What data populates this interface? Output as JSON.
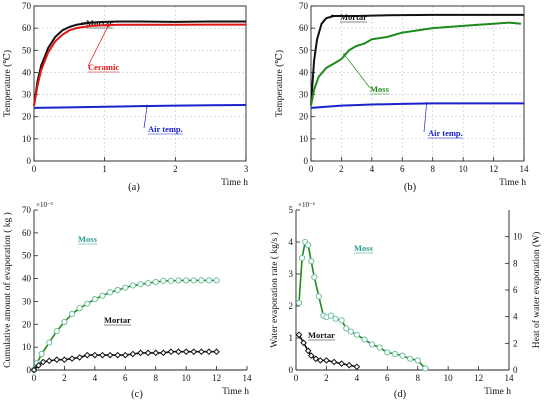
{
  "chart_data": [
    {
      "type": "line",
      "panel_caption": "(a)",
      "xlabel": "Time  h",
      "ylabel": "Temperature  (℃)",
      "xlim": [
        0,
        3
      ],
      "ylim": [
        0,
        70
      ],
      "xticks": [
        0,
        1,
        2,
        3
      ],
      "yticks": [
        0,
        10,
        20,
        30,
        40,
        50,
        60,
        70
      ],
      "grid": true,
      "series": [
        {
          "name": "Mortar",
          "color": "#111111",
          "x": [
            0,
            0.05,
            0.1,
            0.2,
            0.3,
            0.4,
            0.5,
            0.6,
            0.7,
            0.8,
            1.0,
            1.2,
            1.5,
            2.0,
            2.5,
            3.0
          ],
          "y": [
            25,
            36,
            43,
            51,
            56,
            59,
            60.5,
            61.5,
            62,
            62.5,
            62.8,
            63,
            63,
            62.8,
            63,
            63
          ]
        },
        {
          "name": "Ceramic",
          "color": "#e01515",
          "x": [
            0,
            0.05,
            0.1,
            0.2,
            0.3,
            0.4,
            0.5,
            0.6,
            0.7,
            0.8,
            1.0,
            1.2,
            1.5,
            2.0,
            2.5,
            3.0
          ],
          "y": [
            25,
            34,
            41,
            49,
            54,
            57,
            59,
            60,
            60.5,
            61,
            61.3,
            61.5,
            61.5,
            61.5,
            61.6,
            61.6
          ]
        },
        {
          "name": "Air temp.",
          "color": "#1a22cc",
          "x": [
            0,
            0.5,
            1,
            1.5,
            2,
            2.5,
            3
          ],
          "y": [
            24,
            24.2,
            24.5,
            24.8,
            25,
            25.2,
            25.3
          ]
        }
      ]
    },
    {
      "type": "line",
      "panel_caption": "(b)",
      "xlabel": "Time  h",
      "ylabel": "Temperature  (℃)",
      "xlim": [
        0,
        14
      ],
      "ylim": [
        0,
        70
      ],
      "xticks": [
        0,
        2,
        4,
        6,
        8,
        10,
        12,
        14
      ],
      "yticks": [
        0,
        10,
        20,
        30,
        40,
        50,
        60,
        70
      ],
      "grid": true,
      "series": [
        {
          "name": "Mortar",
          "color": "#111111",
          "x": [
            0,
            0.2,
            0.4,
            0.7,
            1,
            1.5,
            2,
            3,
            5,
            8,
            10,
            12,
            14
          ],
          "y": [
            25,
            45,
            55,
            62,
            64.5,
            65.5,
            65.5,
            65.5,
            65.8,
            66,
            66,
            66,
            66
          ]
        },
        {
          "name": "Moss",
          "color": "#1e8a1e",
          "x": [
            0,
            0.2,
            0.5,
            1,
            1.5,
            2,
            2.5,
            3,
            3.5,
            4,
            5,
            6,
            7,
            8,
            9,
            10,
            11,
            12,
            13,
            13.8
          ],
          "y": [
            25,
            32,
            38,
            42,
            44,
            46,
            50,
            52,
            53,
            55,
            56,
            58,
            59,
            60,
            60.5,
            61,
            61.5,
            62,
            62.5,
            62
          ]
        },
        {
          "name": "Air temp.",
          "color": "#1a22cc",
          "x": [
            0,
            2,
            4,
            6,
            8,
            10,
            12,
            14
          ],
          "y": [
            24,
            25,
            25.5,
            25.8,
            26,
            26,
            26,
            26
          ]
        }
      ]
    },
    {
      "type": "line",
      "panel_caption": "(c)",
      "xlabel": "Time  h",
      "ylabel": "Cumulative amount of evaporation ( kg )",
      "multiplier": "×10⁻³",
      "xlim": [
        0,
        14
      ],
      "ylim": [
        0,
        70
      ],
      "xticks": [
        0,
        2,
        4,
        6,
        8,
        10,
        12,
        14
      ],
      "yticks": [
        0,
        10,
        20,
        30,
        40,
        50,
        60,
        70
      ],
      "grid": false,
      "series": [
        {
          "name": "Moss",
          "color": "#1e8a1e",
          "marker": "circle",
          "x": [
            0,
            0.2,
            0.5,
            1,
            1.5,
            2,
            2.5,
            3,
            3.5,
            4,
            4.5,
            5,
            5.5,
            6,
            6.5,
            7,
            7.5,
            8,
            8.5,
            9,
            9.5,
            10,
            10.5,
            11,
            11.5,
            12
          ],
          "y": [
            0,
            3,
            7,
            12,
            17,
            21,
            24.5,
            27,
            29,
            31,
            32.5,
            34,
            35,
            36,
            37,
            37.5,
            38,
            38.5,
            39,
            39,
            39.2,
            39.2,
            39.2,
            39.2,
            39.2,
            39.2
          ]
        },
        {
          "name": "Mortar",
          "color": "#111111",
          "marker": "diamond",
          "x": [
            0,
            0.3,
            0.6,
            1,
            1.5,
            2,
            2.5,
            3,
            3.5,
            4,
            4.5,
            5,
            5.5,
            6,
            6.5,
            7,
            7.5,
            8,
            8.5,
            9,
            9.5,
            10,
            10.5,
            11,
            11.5,
            12
          ],
          "y": [
            0,
            2,
            3.5,
            4,
            4.5,
            4.5,
            5,
            5.5,
            6.5,
            6.5,
            6.5,
            6.5,
            6.5,
            6.5,
            7,
            7.5,
            7.5,
            7.5,
            7.5,
            8,
            8,
            8,
            8,
            8,
            8,
            8
          ]
        }
      ]
    },
    {
      "type": "line",
      "panel_caption": "(d)",
      "xlabel": "Time  h",
      "ylabel": "Water evaporation rate ( kg/s )",
      "ylabel_right": "Heat of water evaporation  (W)",
      "multiplier": "×10⁻⁶",
      "xlim": [
        0,
        14
      ],
      "ylim": [
        0,
        5
      ],
      "ylim_right": [
        0,
        12
      ],
      "xticks": [
        0,
        2,
        4,
        6,
        8,
        10,
        12,
        14
      ],
      "yticks": [
        0,
        1,
        2,
        3,
        4,
        5
      ],
      "yticks_right": [
        0,
        2,
        4,
        6,
        8,
        10
      ],
      "grid": false,
      "series": [
        {
          "name": "Moss",
          "color": "#1e8a1e",
          "marker": "circle",
          "x": [
            0.2,
            0.4,
            0.6,
            0.8,
            1.0,
            1.2,
            1.5,
            1.8,
            2.0,
            2.3,
            2.6,
            3.0,
            3.3,
            3.6,
            4.0,
            4.5,
            5.0,
            5.5,
            6.0,
            6.5,
            7.0,
            7.5,
            8.0,
            8.5
          ],
          "y": [
            2.1,
            3.5,
            4.0,
            3.9,
            3.4,
            2.9,
            2.3,
            1.7,
            1.65,
            1.7,
            1.6,
            1.55,
            1.3,
            1.2,
            1.1,
            0.95,
            0.8,
            0.7,
            0.55,
            0.5,
            0.45,
            0.35,
            0.3,
            0.05
          ]
        },
        {
          "name": "Mortar",
          "color": "#111111",
          "marker": "diamond",
          "x": [
            0.2,
            0.5,
            0.8,
            1.0,
            1.3,
            1.6,
            2.0,
            2.5,
            3.0,
            3.5,
            4.0
          ],
          "y": [
            1.1,
            0.85,
            0.6,
            0.45,
            0.35,
            0.3,
            0.3,
            0.25,
            0.2,
            0.15,
            0.1
          ]
        }
      ]
    }
  ]
}
